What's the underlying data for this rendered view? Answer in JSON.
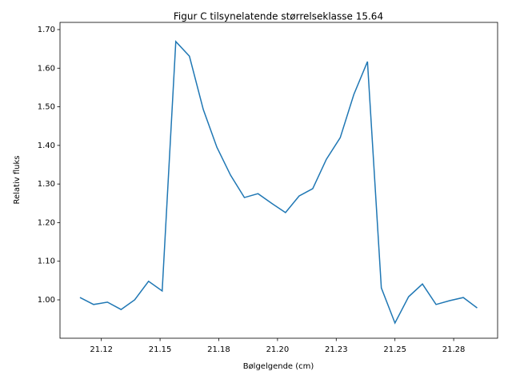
{
  "chart_data": {
    "type": "line",
    "title": "Figur C tilsynelatende størrelseklasse 15.64",
    "x_label": "Bølgelgende (cm)",
    "y_label": "Relativ fluks",
    "x": [
      21.1159,
      21.1217,
      21.1276,
      21.1334,
      21.1392,
      21.1451,
      21.1509,
      21.1567,
      21.1625,
      21.1684,
      21.1742,
      21.18,
      21.1859,
      21.1917,
      21.1975,
      21.2034,
      21.2092,
      21.215,
      21.2208,
      21.2267,
      21.2325,
      21.2383,
      21.2442,
      21.25,
      21.2558,
      21.2617,
      21.2675,
      21.2733,
      21.2791,
      21.285
    ],
    "series": [
      {
        "color": "#1f77b4",
        "values": [
          1.006,
          0.988,
          0.994,
          0.975,
          1.0,
          1.048,
          1.023,
          1.669,
          1.631,
          1.493,
          1.395,
          1.323,
          1.265,
          1.275,
          1.25,
          1.226,
          1.269,
          1.288,
          1.364,
          1.42,
          1.532,
          1.617,
          1.031,
          0.94,
          1.008,
          1.041,
          0.988,
          0.998,
          1.006,
          0.979
        ]
      }
    ],
    "xlim": [
      21.1074,
      21.2937
    ],
    "ylim": [
      0.9006,
      1.7186
    ],
    "xticks": [
      {
        "value": 21.125,
        "label": "21.12"
      },
      {
        "value": 21.15,
        "label": "21.15"
      },
      {
        "value": 21.175,
        "label": "21.18"
      },
      {
        "value": 21.2,
        "label": "21.20"
      },
      {
        "value": 21.225,
        "label": "21.23"
      },
      {
        "value": 21.25,
        "label": "21.25"
      },
      {
        "value": 21.275,
        "label": "21.28"
      }
    ],
    "yticks": [
      {
        "value": 1.0,
        "label": "1.00"
      },
      {
        "value": 1.1,
        "label": "1.10"
      },
      {
        "value": 1.2,
        "label": "1.20"
      },
      {
        "value": 1.3,
        "label": "1.30"
      },
      {
        "value": 1.4,
        "label": "1.40"
      },
      {
        "value": 1.5,
        "label": "1.50"
      },
      {
        "value": 1.6,
        "label": "1.60"
      },
      {
        "value": 1.7,
        "label": "1.70"
      }
    ]
  }
}
